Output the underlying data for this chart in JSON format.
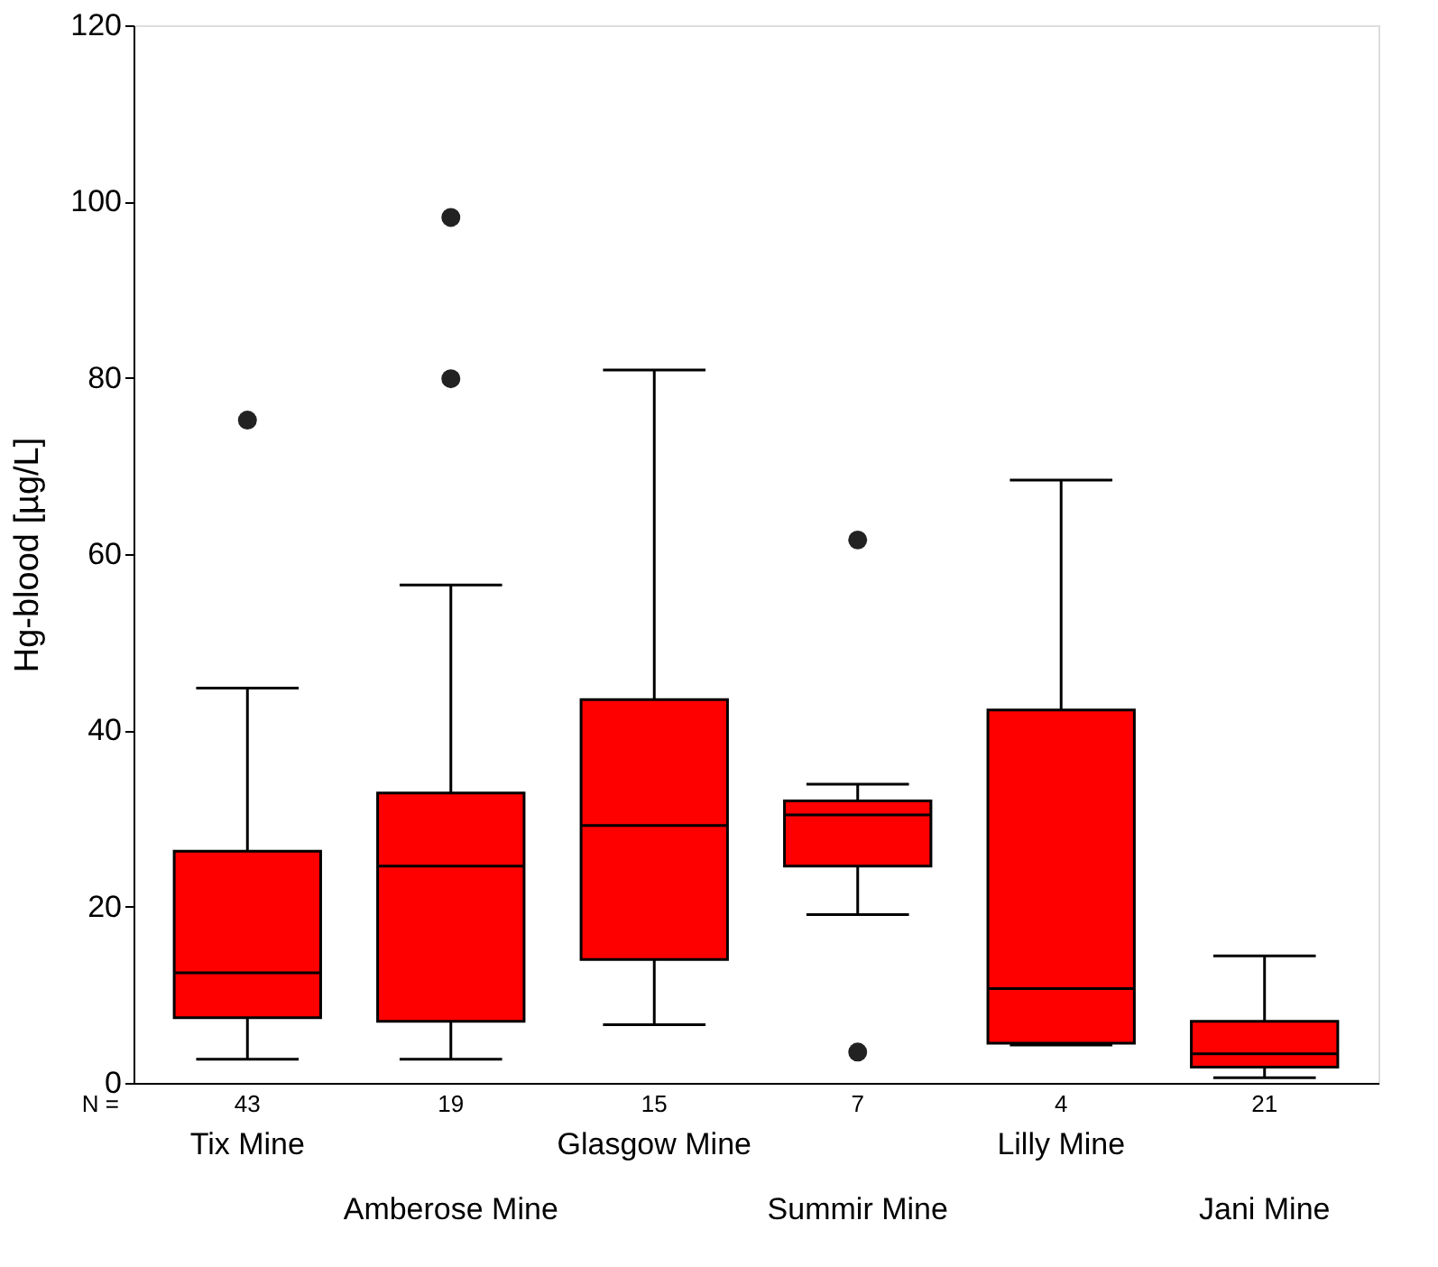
{
  "chart_data": {
    "type": "box",
    "ylabel": "Hg-blood [µg/L]",
    "categories": [
      "Tix Mine",
      "Amberose Mine",
      "Glasgow Mine",
      "Summir Mine",
      "Lilly Mine",
      "Jani Mine"
    ],
    "series": [
      {
        "color": "#ff0000",
        "boxes": [
          {
            "low": 2.7,
            "q1": 7.4,
            "median": 12.5,
            "q3": 26.3,
            "high": 44.8,
            "outliers": [
              75.2
            ]
          },
          {
            "low": 2.7,
            "q1": 7.0,
            "median": 24.6,
            "q3": 32.9,
            "high": 56.5,
            "outliers": [
              98.2,
              79.9
            ]
          },
          {
            "low": 6.6,
            "q1": 14.0,
            "median": 29.2,
            "q3": 43.5,
            "high": 80.9
          },
          {
            "low": 19.1,
            "q1": 24.6,
            "median": 30.4,
            "q3": 32.0,
            "high": 33.9,
            "outliers": [
              61.6,
              3.5
            ]
          },
          {
            "low": 4.3,
            "q1": 4.5,
            "median": 10.7,
            "q3": 42.3,
            "high": 68.4
          },
          {
            "low": 0.6,
            "q1": 1.8,
            "median": 3.3,
            "q3": 7.0,
            "high": 14.4
          }
        ]
      }
    ],
    "ylim": [
      0,
      120
    ],
    "yticks": [
      0,
      20,
      40,
      60,
      80,
      100,
      120
    ],
    "grid": false,
    "annotations": [
      "N =",
      "43",
      "19",
      "15",
      "7",
      "4",
      "21"
    ]
  }
}
